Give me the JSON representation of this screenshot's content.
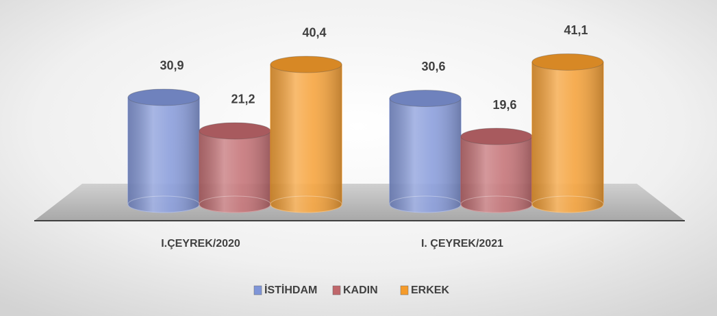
{
  "chart_data": {
    "type": "bar",
    "categories": [
      "I.ÇEYREK/2020",
      "I. ÇEYREK/2021"
    ],
    "series": [
      {
        "name": "İSTİHDAM",
        "color": "#7f95d8",
        "values": [
          30.9,
          30.6
        ],
        "value_labels": [
          "30,9",
          "30,6"
        ]
      },
      {
        "name": "KADIN",
        "color": "#c0676b",
        "values": [
          21.2,
          19.6
        ],
        "value_labels": [
          "21,2",
          "19,6"
        ]
      },
      {
        "name": "ERKEK",
        "color": "#f59b2b",
        "values": [
          40.4,
          41.1
        ],
        "value_labels": [
          "40,4",
          "41,1"
        ]
      }
    ],
    "legend": "bottom"
  }
}
